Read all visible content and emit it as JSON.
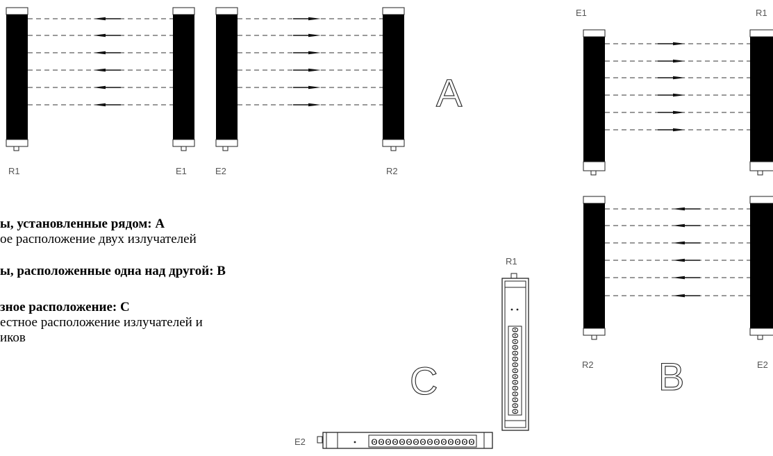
{
  "labels": {
    "a_r1": "R1",
    "a_e1": "E1",
    "a_e2": "E2",
    "a_r2": "R2",
    "b_e1": "E1",
    "b_r1": "R1",
    "b_r2": "R2",
    "b_e2": "E2",
    "c_r1": "R1",
    "c_e2": "E2"
  },
  "letters": {
    "a": "A",
    "b": "B",
    "c": "C"
  },
  "strips": {
    "c_vertical": "000000000000000",
    "c_horizontal": "000000000000000"
  },
  "text": {
    "line1": "ы, установленные рядом: A",
    "line2": "ое расположение двух излучателей",
    "line3": "ы, расположенные одна над другой: B",
    "line4": "зное расположение: C",
    "line5": "естное расположение излучателей и",
    "line6": "иков"
  }
}
